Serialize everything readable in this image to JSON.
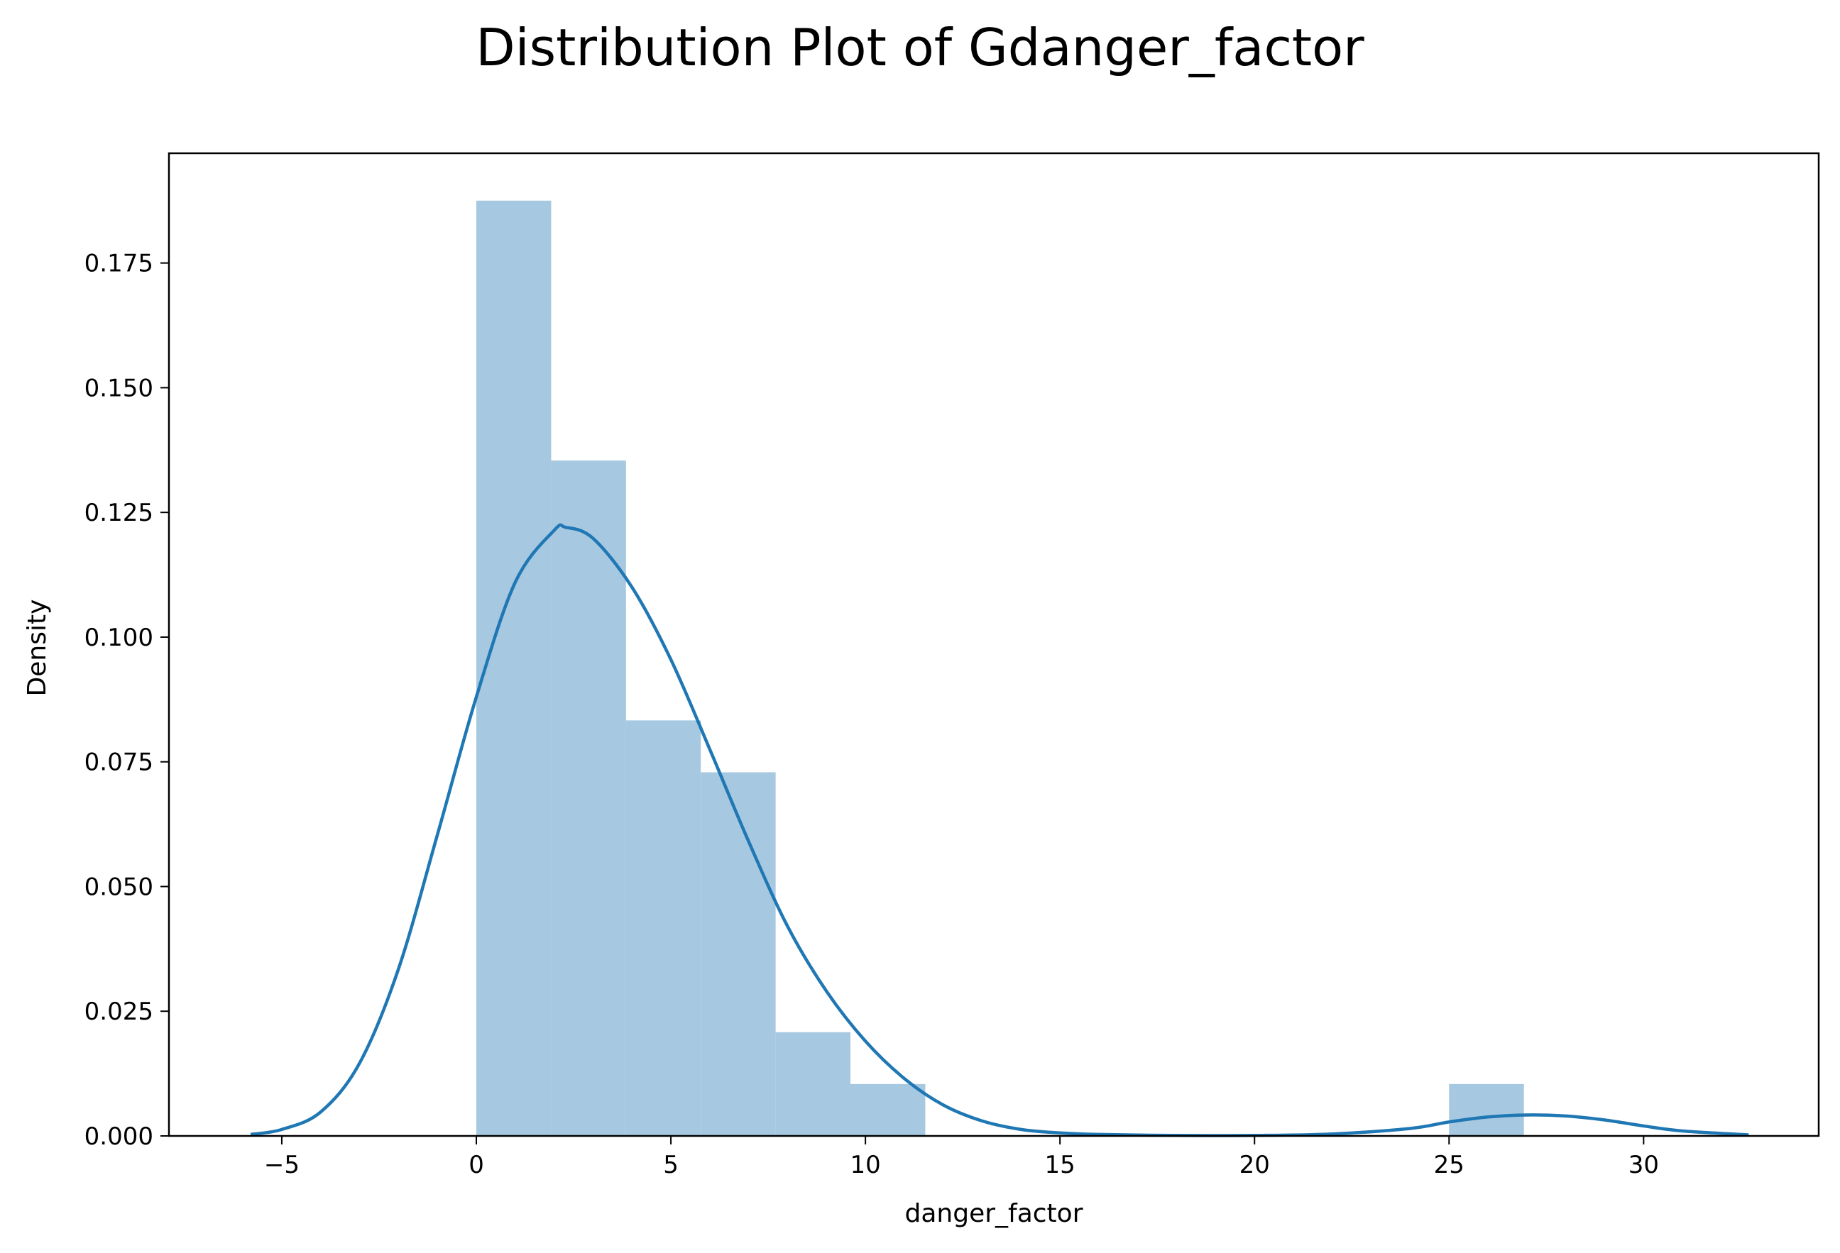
{
  "chart_data": {
    "type": "bar",
    "title": "Distribution Plot of Gdanger_factor",
    "xlabel": "danger_factor",
    "ylabel": "Density",
    "xlim": [
      -7.9,
      34.5
    ],
    "ylim": [
      0,
      0.197
    ],
    "x_ticks": [
      -5,
      0,
      5,
      10,
      15,
      20,
      25,
      30
    ],
    "x_tick_labels": [
      "−5",
      "0",
      "5",
      "10",
      "15",
      "20",
      "25",
      "30"
    ],
    "y_ticks": [
      0,
      0.025,
      0.05,
      0.075,
      0.1,
      0.125,
      0.15,
      0.175
    ],
    "y_tick_labels": [
      "0.000",
      "0.025",
      "0.050",
      "0.075",
      "0.100",
      "0.125",
      "0.150",
      "0.175"
    ],
    "grid": false,
    "histogram": {
      "bin_edges": [
        0,
        1.923,
        3.846,
        5.769,
        7.692,
        9.615,
        11.538,
        13.462,
        15.385,
        17.308,
        19.231,
        21.154,
        23.077,
        25.0,
        26.923
      ],
      "density": [
        0.1875,
        0.1354,
        0.0833,
        0.0729,
        0.0208,
        0.0104,
        0,
        0,
        0,
        0,
        0,
        0,
        0,
        0.0104
      ],
      "color": "#a6c8e0"
    },
    "kde": {
      "color": "#1f77b4",
      "x": [
        -5.8,
        -5,
        -4,
        -3,
        -2,
        -1,
        0,
        1,
        2,
        2.3,
        3,
        4,
        5,
        6,
        7,
        8,
        9,
        10,
        11,
        12,
        13,
        14,
        15,
        16,
        18,
        20,
        22,
        24,
        25,
        26,
        27,
        28,
        29,
        30,
        31,
        32.7
      ],
      "y": [
        0.0003,
        0.0013,
        0.0048,
        0.0146,
        0.0335,
        0.0604,
        0.088,
        0.111,
        0.1214,
        0.122,
        0.1198,
        0.11,
        0.0955,
        0.0775,
        0.059,
        0.042,
        0.029,
        0.019,
        0.0115,
        0.0062,
        0.003,
        0.0013,
        0.0006,
        0.0003,
        0.0001,
        0.0001,
        0.0004,
        0.0015,
        0.0028,
        0.0038,
        0.0042,
        0.004,
        0.0032,
        0.002,
        0.001,
        0.0002
      ]
    }
  }
}
